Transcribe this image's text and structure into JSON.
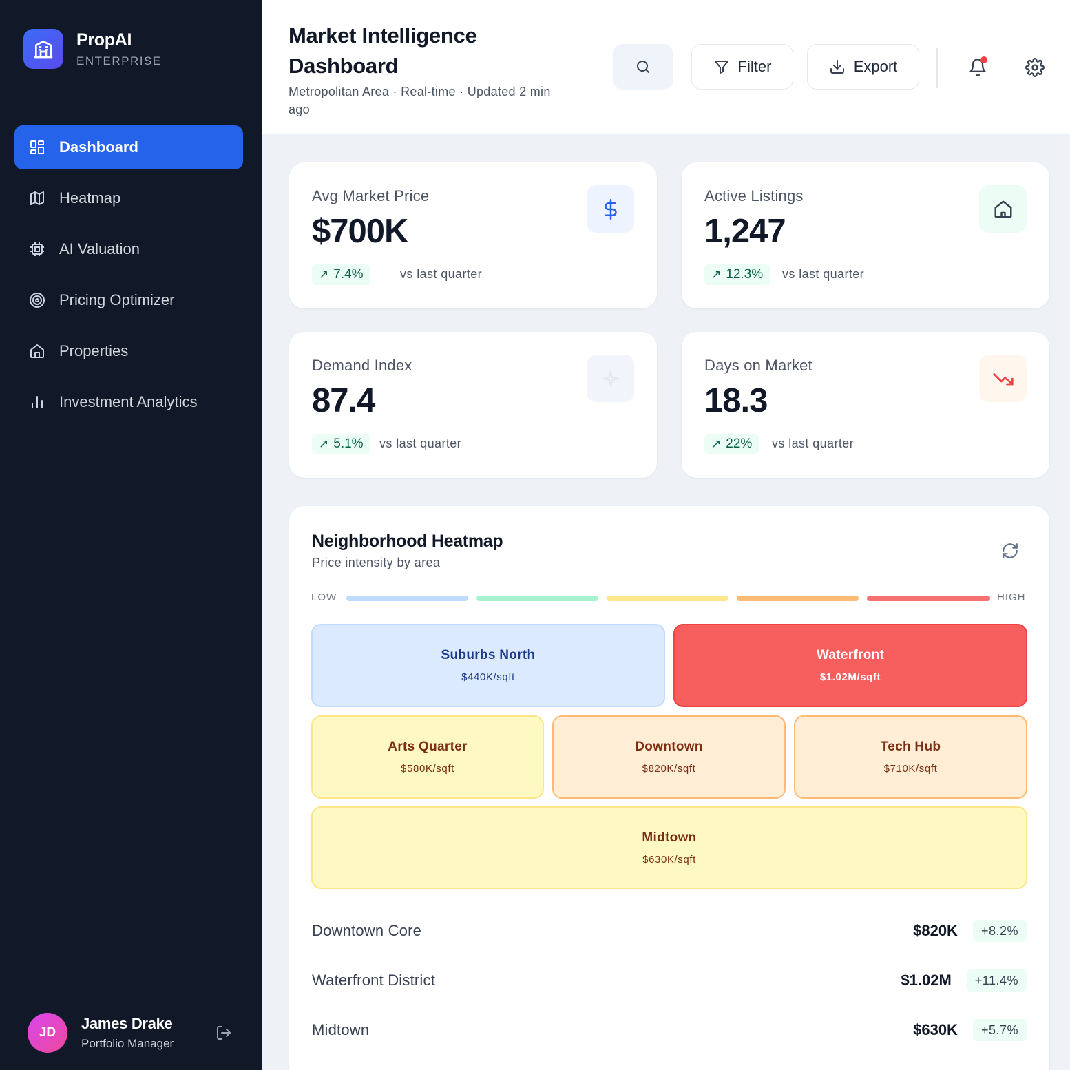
{
  "brand": {
    "name": "PropAI",
    "tier": "ENTERPRISE",
    "icon": "building-icon"
  },
  "nav": {
    "items": [
      {
        "label": "Dashboard",
        "icon": "dashboard-icon",
        "active": true
      },
      {
        "label": "Heatmap",
        "icon": "map-icon"
      },
      {
        "label": "AI Valuation",
        "icon": "chip-icon"
      },
      {
        "label": "Pricing Optimizer",
        "icon": "target-icon"
      },
      {
        "label": "Properties",
        "icon": "home-icon"
      },
      {
        "label": "Investment Analytics",
        "icon": "bar-chart-icon"
      }
    ]
  },
  "user": {
    "initials": "JD",
    "name": "James Drake",
    "role": "Portfolio Manager"
  },
  "header": {
    "title": "Market Intelligence Dashboard",
    "subtitle": "Metropolitan Area · Real-time · Updated 2 min ago",
    "filter_label": "Filter",
    "export_label": "Export"
  },
  "stats": [
    {
      "label": "Avg Market Price",
      "value": "$700K",
      "change": "7.4%",
      "compare": "vs last quarter",
      "icon": "dollar-icon"
    },
    {
      "label": "Active Listings",
      "value": "1,247",
      "change": "12.3%",
      "compare": "vs last quarter",
      "icon": "home-icon"
    },
    {
      "label": "Demand Index",
      "value": "87.4",
      "change": "5.1%",
      "compare": "vs last quarter",
      "icon": "sparkle-icon"
    },
    {
      "label": "Days on Market",
      "value": "18.3",
      "change": "22%",
      "compare": "vs last quarter",
      "icon": "trending-down-icon"
    }
  ],
  "heatmap": {
    "title": "Neighborhood Heatmap",
    "subtitle": "Price intensity by area",
    "legend_low": "LOW",
    "legend_high": "HIGH",
    "legend_colors": [
      "#bfdbfe",
      "#a7f3d0",
      "#fde68a",
      "#fdba74",
      "#f87171"
    ],
    "tiles": [
      {
        "name": "Suburbs North",
        "price": "$440K/sqft"
      },
      {
        "name": "Waterfront",
        "price": "$1.02M/sqft"
      },
      {
        "name": "Arts Quarter",
        "price": "$580K/sqft"
      },
      {
        "name": "Downtown",
        "price": "$820K/sqft"
      },
      {
        "name": "Tech Hub",
        "price": "$710K/sqft"
      },
      {
        "name": "Midtown",
        "price": "$630K/sqft"
      }
    ],
    "areas": [
      {
        "name": "Downtown Core",
        "price": "$820K",
        "change": "+8.2%"
      },
      {
        "name": "Waterfront District",
        "price": "$1.02M",
        "change": "+11.4%"
      },
      {
        "name": "Midtown",
        "price": "$630K",
        "change": "+5.7%"
      }
    ]
  }
}
